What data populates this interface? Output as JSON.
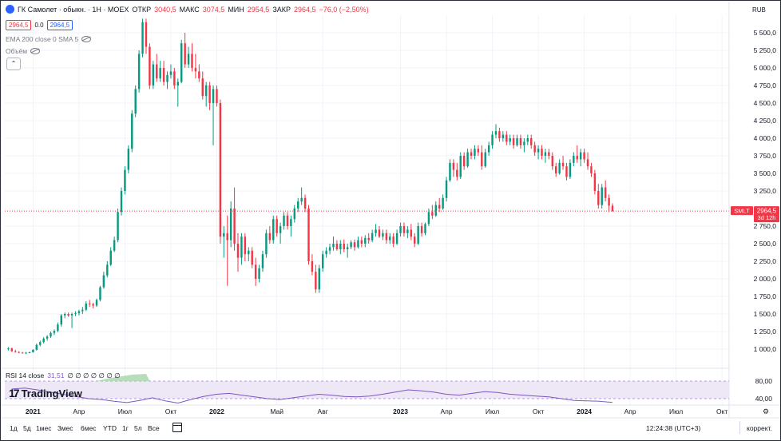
{
  "header": {
    "symbol_title": "ГК Самолет · обыкн. · 1Н · MOEX",
    "logo_letter": "",
    "open_label": "ОТКР",
    "open_value": "3040,5",
    "high_label": "МАКС",
    "high_value": "3074,5",
    "low_label": "МИН",
    "low_value": "2954,5",
    "close_label": "ЗАКР",
    "close_value": "2964,5",
    "change_value": "−76,0 (−2,50%)",
    "bid": "2964,5",
    "spread": "0.0",
    "ask": "2964,5",
    "ema_legend": "EMA 200 close 0 SMA 5",
    "volume_legend": "Объём",
    "collapse_glyph": "⌃",
    "currency": "RUB"
  },
  "price_tag": {
    "ticker": "SMLT",
    "price": "2964,5",
    "countdown": "3d 12h",
    "color": "#f23645"
  },
  "rsi": {
    "label": "RSI 14 close",
    "value": "31,51",
    "extras": "∅ ∅ ∅ ∅ ∅ ∅ ∅",
    "axis_ticks": [
      "80,00",
      "40,00"
    ],
    "series": [
      62,
      64,
      60,
      55,
      50,
      45,
      40,
      38,
      34,
      31,
      36,
      42,
      35,
      30,
      38,
      45,
      50,
      52,
      48,
      44,
      40,
      38,
      42,
      46,
      50,
      48,
      45,
      44,
      46,
      50,
      55,
      60,
      58,
      55,
      50,
      48,
      52,
      56,
      54,
      50,
      48,
      46,
      44,
      40,
      36,
      35,
      34,
      31.51
    ]
  },
  "branding": {
    "logo_mark": "17",
    "logo_text": "TradingView"
  },
  "colors": {
    "up": "#089981",
    "down": "#f23645",
    "rsi": "#7e57c2",
    "rsi_band": "#ede7f6"
  },
  "chart_data": {
    "type": "candlestick",
    "title": "ГК Самолет · обыкн. · 1Н · MOEX",
    "y_ticks": [
      "5 500,0",
      "5 250,0",
      "5 000,0",
      "4 750,0",
      "4 500,0",
      "4 250,0",
      "4 000,0",
      "3 750,0",
      "3 500,0",
      "3 250,0",
      "2 750,0",
      "2 500,0",
      "2 250,0",
      "2 000,0",
      "1 750,0",
      "1 500,0",
      "1 250,0",
      "1 000,0"
    ],
    "y_tick_values": [
      5500,
      5250,
      5000,
      4750,
      4500,
      4250,
      4000,
      3750,
      3500,
      3250,
      2750,
      2500,
      2250,
      2000,
      1750,
      1500,
      1250,
      1000
    ],
    "ylim": [
      750,
      5750
    ],
    "x_ticks": [
      "2021",
      "Апр",
      "Июл",
      "Окт",
      "2022",
      "Май",
      "Авг",
      "2023",
      "Апр",
      "Июл",
      "Окт",
      "2024",
      "Апр",
      "Июл",
      "Окт"
    ],
    "x_tick_weeks": [
      0,
      13,
      26,
      39,
      52,
      69,
      82,
      104,
      117,
      130,
      143,
      156,
      169,
      182,
      195
    ],
    "x_range_weeks": [
      -8,
      197
    ],
    "last_price": 2964.5,
    "candles": [
      [
        -7,
        1000,
        1030,
        980,
        1010
      ],
      [
        -6,
        1010,
        1020,
        960,
        970
      ],
      [
        -5,
        970,
        990,
        950,
        960
      ],
      [
        -4,
        960,
        970,
        940,
        950
      ],
      [
        -3,
        950,
        960,
        940,
        945
      ],
      [
        -2,
        945,
        960,
        930,
        950
      ],
      [
        -1,
        950,
        965,
        940,
        955
      ],
      [
        0,
        955,
        1000,
        950,
        990
      ],
      [
        1,
        990,
        1080,
        980,
        1060
      ],
      [
        2,
        1060,
        1120,
        1040,
        1100
      ],
      [
        3,
        1100,
        1170,
        1080,
        1150
      ],
      [
        4,
        1150,
        1200,
        1120,
        1180
      ],
      [
        5,
        1180,
        1250,
        1160,
        1230
      ],
      [
        6,
        1230,
        1280,
        1200,
        1260
      ],
      [
        7,
        1260,
        1380,
        1240,
        1350
      ],
      [
        8,
        1350,
        1500,
        1320,
        1480
      ],
      [
        9,
        1480,
        1520,
        1440,
        1500
      ],
      [
        10,
        1500,
        1520,
        1460,
        1480
      ],
      [
        11,
        1480,
        1520,
        1300,
        1500
      ],
      [
        12,
        1500,
        1540,
        1470,
        1510
      ],
      [
        13,
        1510,
        1560,
        1480,
        1540
      ],
      [
        14,
        1540,
        1600,
        1500,
        1560
      ],
      [
        15,
        1560,
        1680,
        1540,
        1650
      ],
      [
        16,
        1650,
        1700,
        1600,
        1640
      ],
      [
        17,
        1640,
        1660,
        1580,
        1620
      ],
      [
        18,
        1620,
        1720,
        1600,
        1700
      ],
      [
        19,
        1700,
        1900,
        1680,
        1880
      ],
      [
        20,
        1880,
        2100,
        1860,
        2050
      ],
      [
        21,
        2050,
        2250,
        2020,
        2200
      ],
      [
        22,
        2200,
        2450,
        2180,
        2400
      ],
      [
        23,
        2400,
        2600,
        2380,
        2550
      ],
      [
        24,
        2550,
        3000,
        2520,
        2950
      ],
      [
        25,
        2950,
        3300,
        2900,
        3250
      ],
      [
        26,
        3250,
        3600,
        3200,
        3550
      ],
      [
        27,
        3550,
        3900,
        3500,
        3850
      ],
      [
        28,
        3850,
        4400,
        3800,
        4350
      ],
      [
        29,
        4350,
        4750,
        4300,
        4700
      ],
      [
        30,
        4700,
        5250,
        4650,
        5200
      ],
      [
        31,
        5200,
        5700,
        5150,
        5650
      ],
      [
        32,
        5650,
        5700,
        5200,
        5300
      ],
      [
        33,
        5300,
        5350,
        4700,
        4750
      ],
      [
        34,
        4750,
        5100,
        4700,
        5050
      ],
      [
        35,
        5050,
        5200,
        4800,
        4850
      ],
      [
        36,
        4850,
        5100,
        4800,
        5000
      ],
      [
        37,
        5000,
        5100,
        4750,
        4800
      ],
      [
        38,
        4800,
        4950,
        4700,
        4900
      ],
      [
        39,
        4900,
        5050,
        4850,
        4950
      ],
      [
        40,
        4950,
        5000,
        4700,
        4750
      ],
      [
        41,
        4750,
        4850,
        4450,
        4800
      ],
      [
        42,
        4800,
        5400,
        4780,
        5350
      ],
      [
        43,
        5350,
        5500,
        5000,
        5050
      ],
      [
        44,
        5050,
        5300,
        5000,
        5200
      ],
      [
        45,
        5200,
        5350,
        4950,
        5000
      ],
      [
        46,
        5000,
        5200,
        4850,
        4950
      ],
      [
        47,
        4950,
        5050,
        4800,
        4850
      ],
      [
        48,
        4850,
        4950,
        4550,
        4600
      ],
      [
        49,
        4600,
        4800,
        4450,
        4750
      ],
      [
        50,
        4750,
        4800,
        4400,
        4500
      ],
      [
        51,
        4500,
        4750,
        3900,
        4700
      ],
      [
        52,
        4700,
        4750,
        4450,
        4500
      ],
      [
        53,
        4500,
        4550,
        2500,
        2600
      ],
      [
        54,
        2600,
        2750,
        2300,
        2650
      ],
      [
        55,
        2650,
        2900,
        1900,
        2550
      ],
      [
        56,
        2550,
        3100,
        2450,
        3000
      ],
      [
        57,
        3000,
        3300,
        2400,
        2500
      ],
      [
        58,
        2500,
        2650,
        2100,
        2300
      ],
      [
        59,
        2300,
        2650,
        2200,
        2600
      ],
      [
        60,
        2600,
        2650,
        2250,
        2350
      ],
      [
        61,
        2350,
        2450,
        2250,
        2400
      ],
      [
        62,
        2400,
        2450,
        2150,
        2200
      ],
      [
        63,
        2200,
        2300,
        1900,
        2000
      ],
      [
        64,
        2000,
        2200,
        1950,
        2150
      ],
      [
        65,
        2150,
        2400,
        2100,
        2350
      ],
      [
        66,
        2350,
        2700,
        2300,
        2650
      ],
      [
        67,
        2650,
        2750,
        2500,
        2550
      ],
      [
        68,
        2550,
        2900,
        2500,
        2850
      ],
      [
        69,
        2850,
        2900,
        2600,
        2650
      ],
      [
        70,
        2650,
        2800,
        2500,
        2750
      ],
      [
        71,
        2750,
        2950,
        2700,
        2900
      ],
      [
        72,
        2900,
        2950,
        2700,
        2750
      ],
      [
        73,
        2750,
        2900,
        2600,
        2850
      ],
      [
        74,
        2850,
        3050,
        2800,
        3000
      ],
      [
        75,
        3000,
        3150,
        2950,
        3100
      ],
      [
        76,
        3100,
        3300,
        3050,
        3150
      ],
      [
        77,
        3150,
        3200,
        2950,
        3000
      ],
      [
        78,
        3000,
        3050,
        2200,
        2250
      ],
      [
        79,
        2250,
        2350,
        2050,
        2100
      ],
      [
        80,
        2100,
        2200,
        1800,
        1850
      ],
      [
        81,
        1850,
        2200,
        1800,
        2150
      ],
      [
        82,
        2150,
        2400,
        2100,
        2350
      ],
      [
        83,
        2350,
        2450,
        2300,
        2400
      ],
      [
        84,
        2400,
        2500,
        2350,
        2450
      ],
      [
        85,
        2450,
        2600,
        2400,
        2500
      ],
      [
        86,
        2500,
        2550,
        2400,
        2420
      ],
      [
        87,
        2420,
        2550,
        2350,
        2500
      ],
      [
        88,
        2500,
        2560,
        2380,
        2420
      ],
      [
        89,
        2420,
        2500,
        2300,
        2450
      ],
      [
        90,
        2450,
        2550,
        2420,
        2520
      ],
      [
        91,
        2520,
        2560,
        2400,
        2450
      ],
      [
        92,
        2450,
        2600,
        2430,
        2550
      ],
      [
        93,
        2550,
        2600,
        2450,
        2500
      ],
      [
        94,
        2500,
        2620,
        2450,
        2580
      ],
      [
        95,
        2580,
        2650,
        2500,
        2550
      ],
      [
        96,
        2550,
        2700,
        2520,
        2650
      ],
      [
        97,
        2650,
        2780,
        2600,
        2700
      ],
      [
        98,
        2700,
        2750,
        2580,
        2600
      ],
      [
        99,
        2600,
        2700,
        2550,
        2650
      ],
      [
        100,
        2650,
        2700,
        2500,
        2550
      ],
      [
        101,
        2550,
        2650,
        2500,
        2600
      ],
      [
        102,
        2600,
        2650,
        2450,
        2500
      ],
      [
        103,
        2500,
        2700,
        2480,
        2650
      ],
      [
        104,
        2650,
        2800,
        2600,
        2750
      ],
      [
        105,
        2750,
        2800,
        2600,
        2650
      ],
      [
        106,
        2650,
        2750,
        2580,
        2700
      ],
      [
        107,
        2700,
        2780,
        2550,
        2600
      ],
      [
        108,
        2600,
        2650,
        2450,
        2500
      ],
      [
        109,
        2500,
        2800,
        2480,
        2750
      ],
      [
        110,
        2750,
        2800,
        2600,
        2650
      ],
      [
        111,
        2650,
        2800,
        2620,
        2780
      ],
      [
        112,
        2780,
        3000,
        2750,
        2950
      ],
      [
        113,
        2950,
        3050,
        2850,
        2900
      ],
      [
        114,
        2900,
        3100,
        2880,
        3050
      ],
      [
        115,
        3050,
        3150,
        2950,
        3000
      ],
      [
        116,
        3000,
        3200,
        2980,
        3150
      ],
      [
        117,
        3150,
        3450,
        3100,
        3400
      ],
      [
        118,
        3400,
        3700,
        3380,
        3650
      ],
      [
        119,
        3650,
        3700,
        3450,
        3550
      ],
      [
        120,
        3550,
        3650,
        3400,
        3450
      ],
      [
        121,
        3450,
        3800,
        3420,
        3750
      ],
      [
        122,
        3750,
        3800,
        3550,
        3600
      ],
      [
        123,
        3600,
        3850,
        3580,
        3800
      ],
      [
        124,
        3800,
        3850,
        3700,
        3750
      ],
      [
        125,
        3750,
        3900,
        3700,
        3850
      ],
      [
        126,
        3850,
        3900,
        3750,
        3800
      ],
      [
        127,
        3800,
        3900,
        3550,
        3600
      ],
      [
        128,
        3600,
        3850,
        3580,
        3800
      ],
      [
        129,
        3800,
        3950,
        3750,
        3900
      ],
      [
        130,
        3900,
        4100,
        3850,
        4050
      ],
      [
        131,
        4050,
        4200,
        4000,
        4100
      ],
      [
        132,
        4100,
        4150,
        3950,
        4000
      ],
      [
        133,
        4000,
        4100,
        3950,
        4050
      ],
      [
        134,
        4050,
        4100,
        3900,
        3950
      ],
      [
        135,
        3950,
        4050,
        3900,
        4000
      ],
      [
        136,
        4000,
        4050,
        3850,
        3900
      ],
      [
        137,
        3900,
        4050,
        3880,
        4000
      ],
      [
        138,
        4000,
        4050,
        3850,
        3900
      ],
      [
        139,
        3900,
        4000,
        3800,
        3950
      ],
      [
        140,
        3950,
        4050,
        3900,
        4000
      ],
      [
        141,
        4000,
        4050,
        3850,
        3900
      ],
      [
        142,
        3900,
        3950,
        3750,
        3800
      ],
      [
        143,
        3800,
        3900,
        3700,
        3850
      ],
      [
        144,
        3850,
        3900,
        3700,
        3750
      ],
      [
        145,
        3750,
        3850,
        3650,
        3800
      ],
      [
        146,
        3800,
        3850,
        3700,
        3750
      ],
      [
        147,
        3750,
        3800,
        3550,
        3600
      ],
      [
        148,
        3600,
        3650,
        3450,
        3500
      ],
      [
        149,
        3500,
        3700,
        3480,
        3650
      ],
      [
        150,
        3650,
        3750,
        3550,
        3600
      ],
      [
        151,
        3600,
        3650,
        3400,
        3450
      ],
      [
        152,
        3450,
        3700,
        3420,
        3650
      ],
      [
        153,
        3650,
        3800,
        3600,
        3750
      ],
      [
        154,
        3750,
        3900,
        3650,
        3700
      ],
      [
        155,
        3700,
        3850,
        3600,
        3800
      ],
      [
        156,
        3800,
        3850,
        3650,
        3700
      ],
      [
        157,
        3700,
        3800,
        3550,
        3600
      ],
      [
        158,
        3600,
        3650,
        3450,
        3500
      ],
      [
        159,
        3500,
        3550,
        3200,
        3250
      ],
      [
        160,
        3250,
        3350,
        3000,
        3050
      ],
      [
        161,
        3050,
        3350,
        3000,
        3300
      ],
      [
        162,
        3300,
        3400,
        3100,
        3150
      ],
      [
        163,
        3150,
        3200,
        2950,
        3040
      ],
      [
        164,
        3040.5,
        3074.5,
        2954.5,
        2964.5
      ]
    ]
  }
}
